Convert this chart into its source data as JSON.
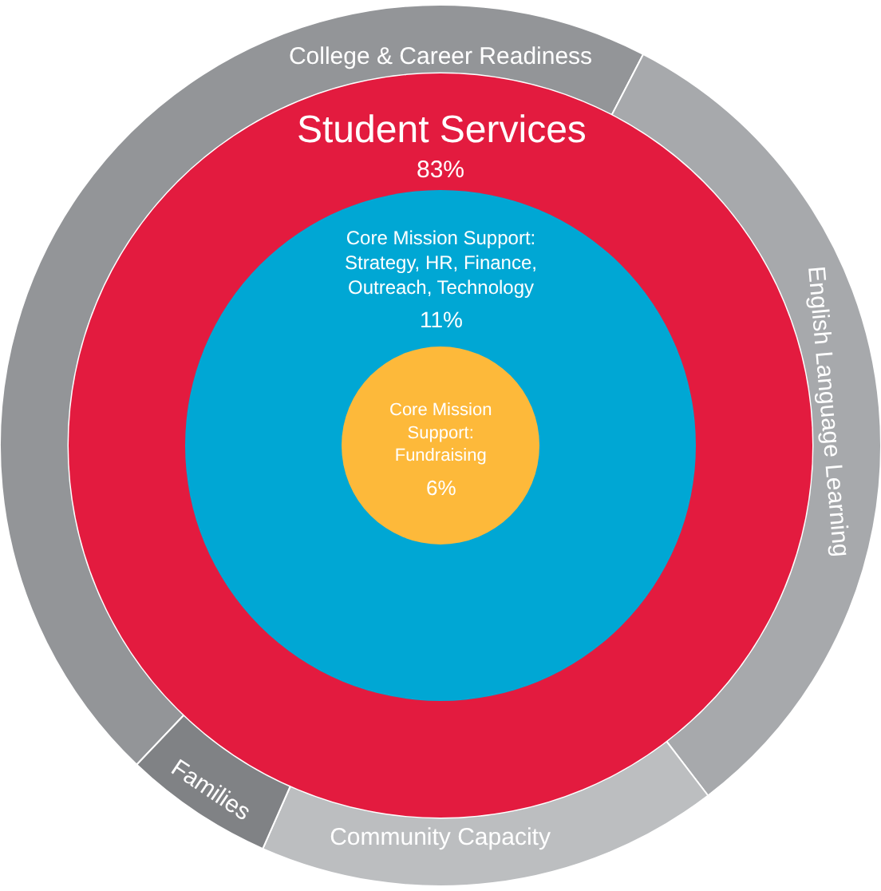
{
  "chart_data": [
    {
      "type": "donut",
      "categories": [
        "College & Career Readiness",
        "English Language Learning",
        "Community Capacity",
        "Families"
      ],
      "values": [
        45.5,
        32,
        17,
        5.5
      ],
      "colors": [
        "#939598",
        "#a7a9ac",
        "#bcbec0",
        "#808285"
      ]
    },
    {
      "type": "other",
      "categories": [
        "Student Services",
        "Core Mission Support: Strategy, HR, Finance, Outreach, Technology",
        "Core Mission Support: Fundraising"
      ],
      "values": [
        83,
        11,
        6
      ],
      "value_labels": [
        "83%",
        "11%",
        "6%"
      ],
      "colors": [
        "#e31b3f",
        "#00a7d4",
        "#fdb93a"
      ]
    }
  ]
}
